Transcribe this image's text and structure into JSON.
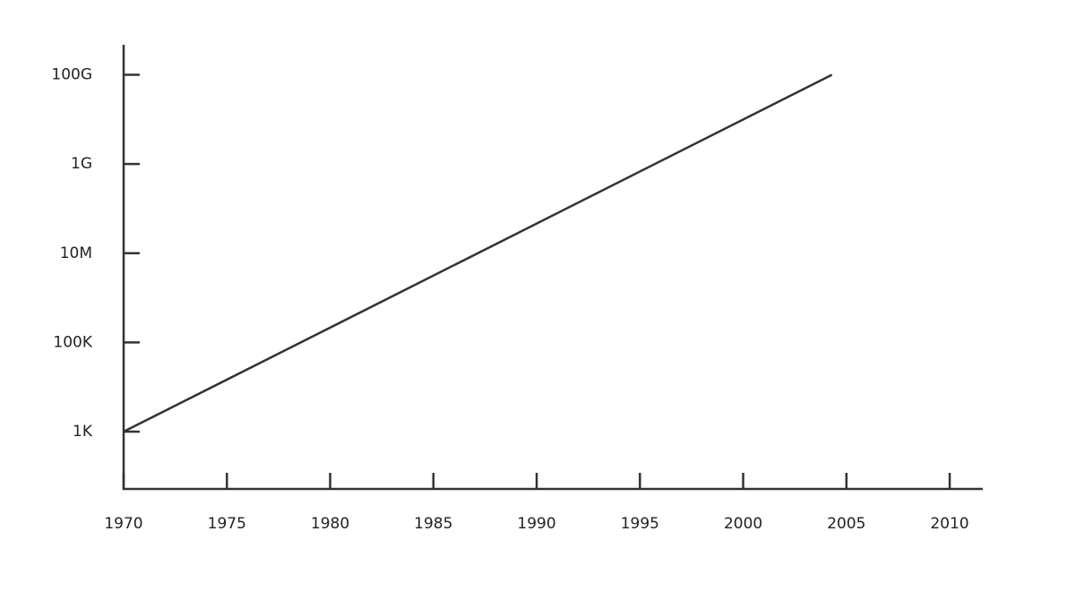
{
  "chart_data": {
    "type": "line",
    "x": [
      1970,
      2004.3
    ],
    "values": [
      1000,
      100000000000
    ],
    "color": "#333333",
    "xlim": [
      1970,
      2011.6
    ],
    "xticks": [
      1970,
      1975,
      1980,
      1985,
      1990,
      1995,
      2000,
      2005,
      2010
    ],
    "ylim": [
      52,
      470000000000
    ],
    "ylog": true,
    "yticks": [
      {
        "value": 1000,
        "label": "1K"
      },
      {
        "value": 100000,
        "label": "100K"
      },
      {
        "value": 10000000,
        "label": "10M"
      },
      {
        "value": 1000000000,
        "label": "1G"
      },
      {
        "value": 100000000000,
        "label": "100G"
      }
    ],
    "grid": false
  }
}
